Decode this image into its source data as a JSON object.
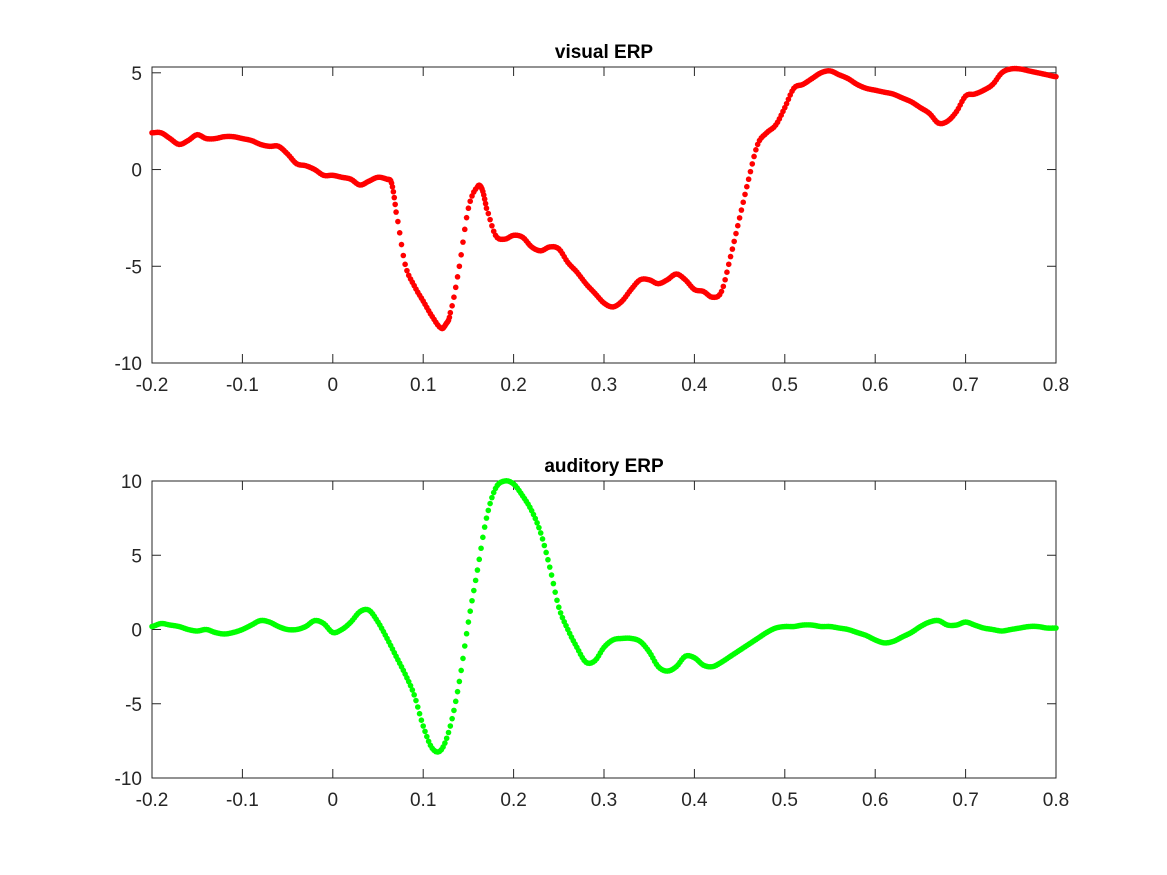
{
  "chart_data": [
    {
      "type": "scatter",
      "title": "visual ERP",
      "xlabel": "",
      "ylabel": "",
      "xlim": [
        -0.2,
        0.8
      ],
      "ylim": [
        -10,
        5.3
      ],
      "xticks": [
        "-0.2",
        "-0.1",
        "0",
        "0.1",
        "0.2",
        "0.3",
        "0.4",
        "0.5",
        "0.6",
        "0.7",
        "0.8"
      ],
      "yticks": [
        "-10",
        "-5",
        "0",
        "5"
      ],
      "grid": false,
      "color": "#ff0000",
      "series": [
        {
          "x": [
            -0.2,
            -0.19,
            -0.18,
            -0.17,
            -0.16,
            -0.15,
            -0.14,
            -0.13,
            -0.12,
            -0.11,
            -0.1,
            -0.09,
            -0.08,
            -0.07,
            -0.06,
            -0.05,
            -0.04,
            -0.03,
            -0.02,
            -0.01,
            0.0,
            0.01,
            0.02,
            0.03,
            0.04,
            0.05,
            0.06,
            0.065,
            0.07,
            0.08,
            0.09,
            0.1,
            0.11,
            0.12,
            0.125,
            0.13,
            0.14,
            0.15,
            0.16,
            0.165,
            0.17,
            0.18,
            0.19,
            0.2,
            0.21,
            0.22,
            0.23,
            0.24,
            0.25,
            0.26,
            0.27,
            0.28,
            0.29,
            0.3,
            0.31,
            0.32,
            0.33,
            0.34,
            0.35,
            0.36,
            0.37,
            0.38,
            0.39,
            0.4,
            0.41,
            0.42,
            0.43,
            0.44,
            0.45,
            0.46,
            0.47,
            0.48,
            0.49,
            0.5,
            0.51,
            0.52,
            0.53,
            0.54,
            0.55,
            0.56,
            0.57,
            0.58,
            0.59,
            0.6,
            0.61,
            0.62,
            0.63,
            0.64,
            0.65,
            0.66,
            0.67,
            0.68,
            0.69,
            0.7,
            0.71,
            0.72,
            0.73,
            0.74,
            0.75,
            0.76,
            0.77,
            0.78,
            0.79,
            0.8
          ],
          "y": [
            1.9,
            1.9,
            1.6,
            1.3,
            1.5,
            1.8,
            1.6,
            1.6,
            1.7,
            1.7,
            1.6,
            1.5,
            1.3,
            1.2,
            1.2,
            0.8,
            0.3,
            0.2,
            0.0,
            -0.3,
            -0.3,
            -0.4,
            -0.5,
            -0.8,
            -0.6,
            -0.4,
            -0.5,
            -0.7,
            -2.2,
            -4.9,
            -6.0,
            -6.8,
            -7.6,
            -8.2,
            -8.0,
            -7.4,
            -5.0,
            -2.0,
            -0.9,
            -1.0,
            -2.0,
            -3.4,
            -3.6,
            -3.4,
            -3.5,
            -4.0,
            -4.2,
            -4.0,
            -4.1,
            -4.8,
            -5.3,
            -5.9,
            -6.4,
            -6.9,
            -7.1,
            -6.8,
            -6.2,
            -5.7,
            -5.7,
            -5.9,
            -5.7,
            -5.4,
            -5.7,
            -6.2,
            -6.3,
            -6.6,
            -6.3,
            -4.5,
            -2.5,
            -0.5,
            1.3,
            1.9,
            2.3,
            3.2,
            4.2,
            4.4,
            4.7,
            5.0,
            5.1,
            4.9,
            4.7,
            4.4,
            4.2,
            4.1,
            4.0,
            3.9,
            3.7,
            3.5,
            3.2,
            2.9,
            2.4,
            2.5,
            3.0,
            3.8,
            3.9,
            4.1,
            4.4,
            5.0,
            5.2,
            5.2,
            5.1,
            5.0,
            4.9,
            4.8
          ]
        }
      ]
    },
    {
      "type": "scatter",
      "title": "auditory ERP",
      "xlabel": "",
      "ylabel": "",
      "xlim": [
        -0.2,
        0.8
      ],
      "ylim": [
        -10,
        10
      ],
      "xticks": [
        "-0.2",
        "-0.1",
        "0",
        "0.1",
        "0.2",
        "0.3",
        "0.4",
        "0.5",
        "0.6",
        "0.7",
        "0.8"
      ],
      "yticks": [
        "-10",
        "-5",
        "0",
        "5",
        "10"
      ],
      "grid": false,
      "color": "#00ff00",
      "series": [
        {
          "x": [
            -0.2,
            -0.19,
            -0.18,
            -0.17,
            -0.16,
            -0.15,
            -0.14,
            -0.13,
            -0.12,
            -0.11,
            -0.1,
            -0.09,
            -0.08,
            -0.07,
            -0.06,
            -0.05,
            -0.04,
            -0.03,
            -0.02,
            -0.01,
            0.0,
            0.01,
            0.02,
            0.03,
            0.04,
            0.05,
            0.06,
            0.07,
            0.08,
            0.09,
            0.1,
            0.11,
            0.12,
            0.13,
            0.14,
            0.15,
            0.16,
            0.17,
            0.18,
            0.19,
            0.2,
            0.21,
            0.22,
            0.23,
            0.24,
            0.25,
            0.26,
            0.27,
            0.28,
            0.29,
            0.3,
            0.31,
            0.32,
            0.33,
            0.34,
            0.35,
            0.36,
            0.37,
            0.38,
            0.39,
            0.4,
            0.41,
            0.42,
            0.43,
            0.44,
            0.45,
            0.46,
            0.47,
            0.48,
            0.49,
            0.5,
            0.51,
            0.52,
            0.53,
            0.54,
            0.55,
            0.56,
            0.57,
            0.58,
            0.59,
            0.6,
            0.61,
            0.62,
            0.63,
            0.64,
            0.65,
            0.66,
            0.67,
            0.68,
            0.69,
            0.7,
            0.71,
            0.72,
            0.73,
            0.74,
            0.75,
            0.76,
            0.77,
            0.78,
            0.79,
            0.8
          ],
          "y": [
            0.2,
            0.4,
            0.3,
            0.2,
            0.0,
            -0.1,
            0.0,
            -0.2,
            -0.3,
            -0.2,
            0.0,
            0.3,
            0.6,
            0.5,
            0.2,
            0.0,
            0.0,
            0.2,
            0.6,
            0.4,
            -0.2,
            0.0,
            0.5,
            1.2,
            1.3,
            0.5,
            -0.6,
            -1.8,
            -3.0,
            -4.4,
            -6.5,
            -8.0,
            -8.1,
            -6.5,
            -3.5,
            0.5,
            4.0,
            7.5,
            9.5,
            10.0,
            9.8,
            9.0,
            8.0,
            6.5,
            4.2,
            1.5,
            0.0,
            -1.2,
            -2.2,
            -2.1,
            -1.2,
            -0.7,
            -0.6,
            -0.6,
            -0.8,
            -1.5,
            -2.5,
            -2.8,
            -2.5,
            -1.8,
            -1.9,
            -2.4,
            -2.5,
            -2.2,
            -1.8,
            -1.4,
            -1.0,
            -0.6,
            -0.2,
            0.1,
            0.2,
            0.2,
            0.3,
            0.3,
            0.2,
            0.2,
            0.1,
            0.0,
            -0.2,
            -0.4,
            -0.7,
            -0.9,
            -0.8,
            -0.5,
            -0.2,
            0.2,
            0.5,
            0.6,
            0.3,
            0.3,
            0.5,
            0.3,
            0.1,
            0.0,
            -0.1,
            0.0,
            0.1,
            0.2,
            0.2,
            0.1,
            0.1
          ]
        }
      ]
    }
  ]
}
